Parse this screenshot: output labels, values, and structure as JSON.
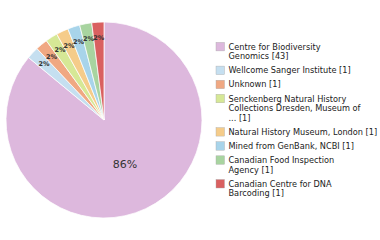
{
  "chart_data": {
    "type": "pie",
    "categories": [
      "Centre for Biodiversity\nGenomics [43]",
      "Wellcome Sanger Institute [1]",
      "Unknown [1]",
      "Senckenberg Natural History\nCollections Dresden, Museum of\n... [1]",
      "Natural History Museum, London [1]",
      "Mined from GenBank, NCBI [1]",
      "Canadian Food Inspection\nAgency [1]",
      "Canadian Centre for DNA\nBarcoding [1]"
    ],
    "values": [
      86,
      2,
      2,
      2,
      2,
      2,
      2,
      2
    ],
    "value_labels": [
      "86%",
      "2%",
      "2%",
      "2%",
      "2%",
      "2%",
      "2%",
      "2%"
    ],
    "colors": [
      "#ddb8dd",
      "#c5dff0",
      "#f0a882",
      "#d6e896",
      "#f5cc8a",
      "#a8d4ea",
      "#a8d4a0",
      "#d96060"
    ],
    "data_labels": true,
    "legend": "right"
  }
}
